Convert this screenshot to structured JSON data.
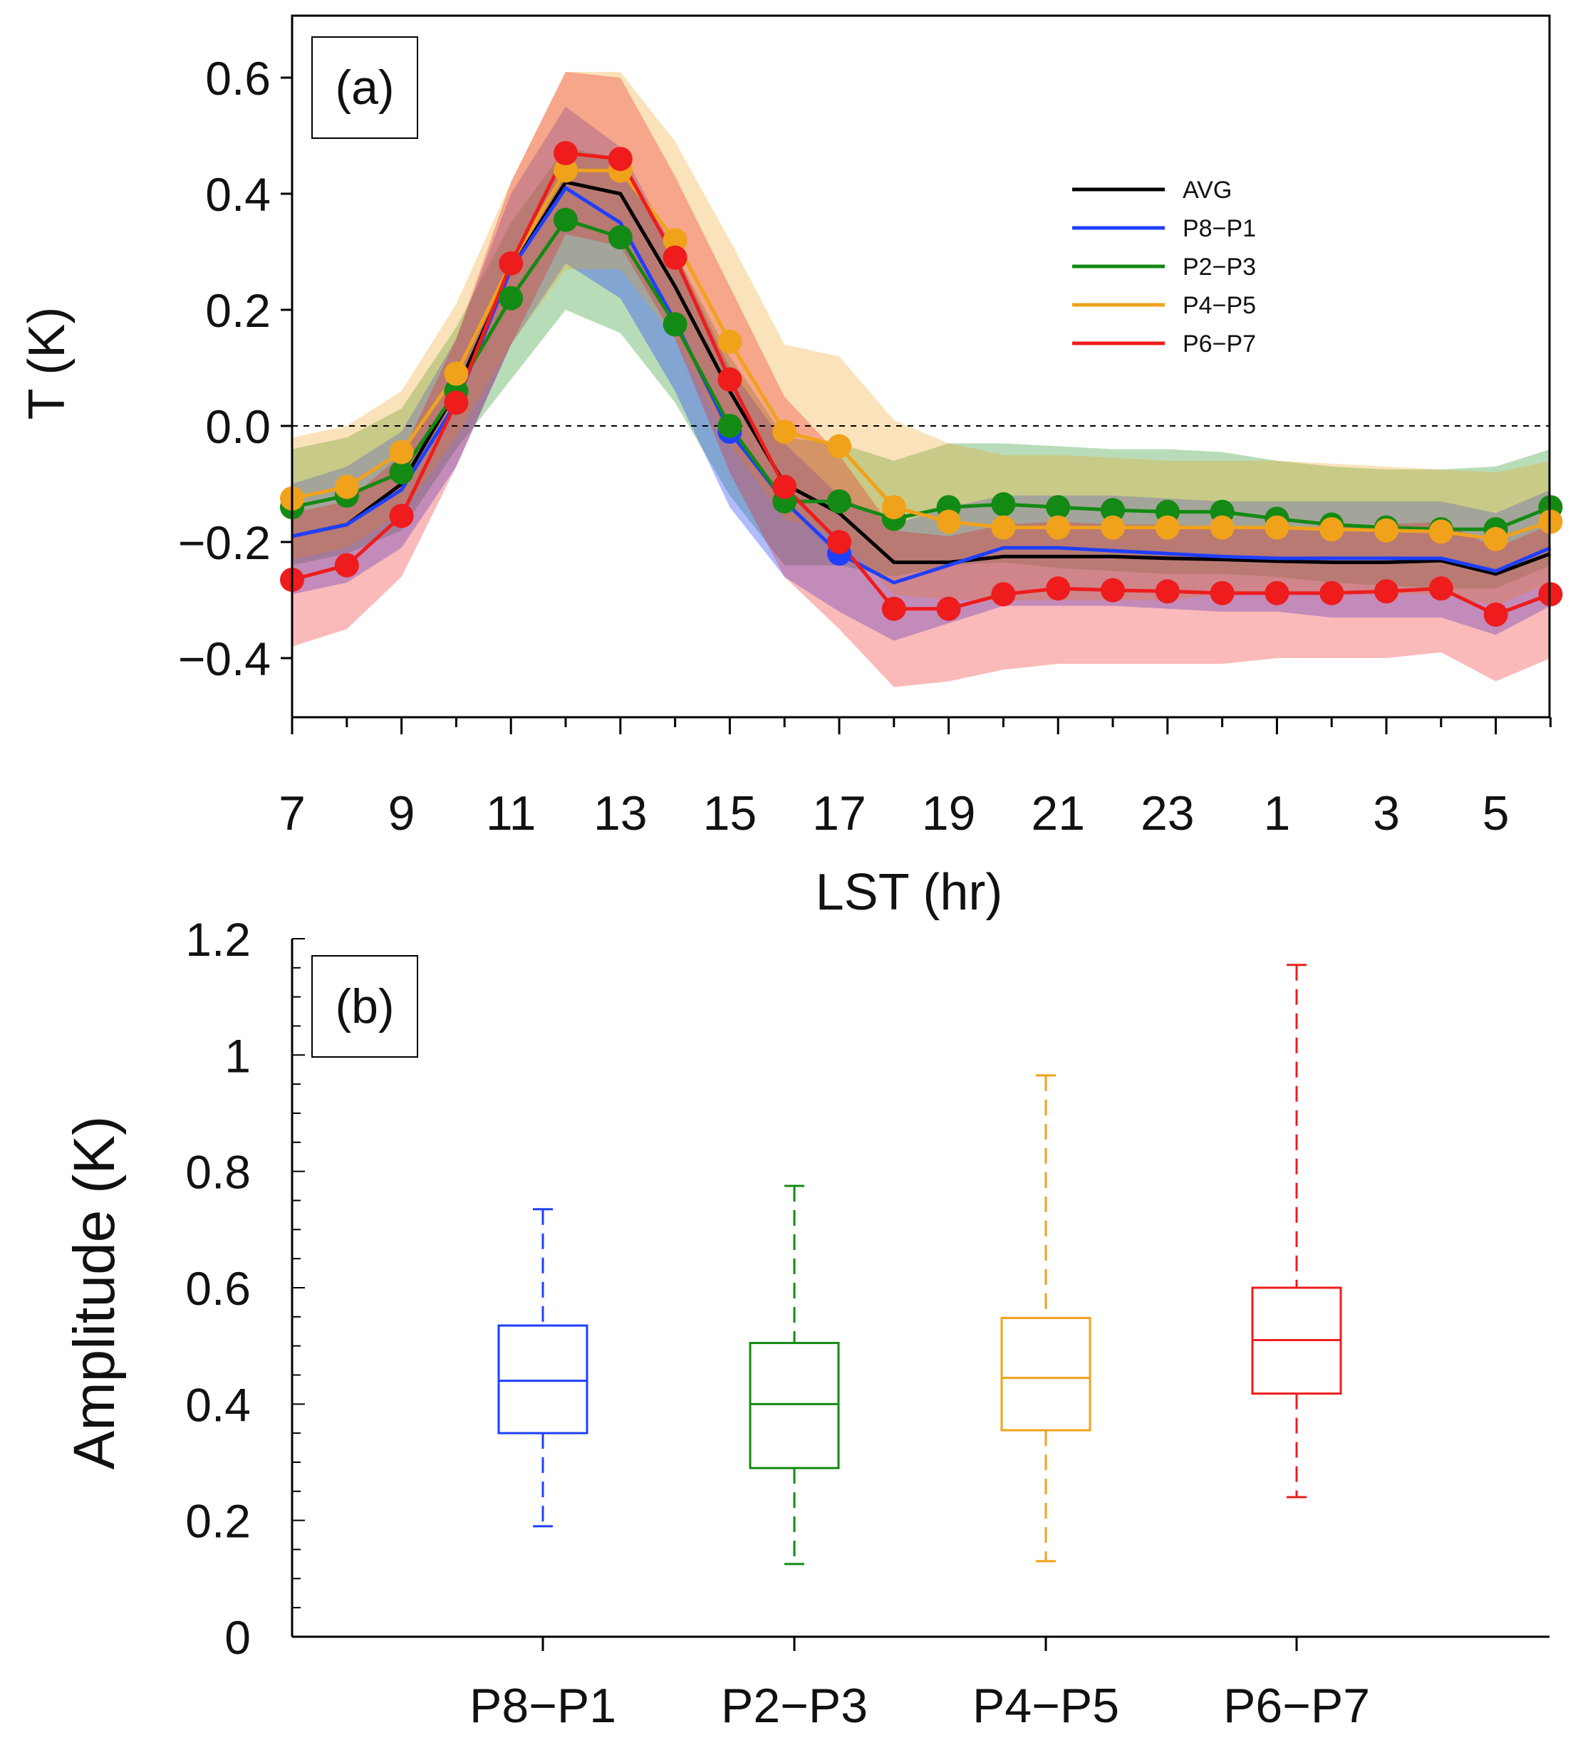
{
  "chart_data": [
    {
      "type": "line",
      "panel_label": "(a)",
      "xlabel": "LST (hr)",
      "ylabel": "T (K)",
      "x_index": [
        0,
        1,
        2,
        3,
        4,
        5,
        6,
        7,
        8,
        9,
        10,
        11,
        12,
        13,
        14,
        15,
        16,
        17,
        18,
        19,
        20,
        21,
        22,
        23
      ],
      "hours": [
        7,
        8,
        9,
        10,
        11,
        12,
        13,
        14,
        15,
        16,
        17,
        18,
        19,
        20,
        21,
        22,
        23,
        0,
        1,
        2,
        3,
        4,
        5,
        6
      ],
      "x_tick_labels": [
        "7",
        "9",
        "11",
        "13",
        "15",
        "17",
        "19",
        "21",
        "23",
        "1",
        "3",
        "5"
      ],
      "y_tick_labels": [
        "0.6",
        "0.4",
        "0.2",
        "0.0",
        "−0.2",
        "−0.4"
      ],
      "y_ticks": [
        0.6,
        0.4,
        0.2,
        0.0,
        -0.2,
        -0.4
      ],
      "ylim": [
        -0.5,
        0.7
      ],
      "reference_line": 0.0,
      "legend": {
        "position": "top-right"
      },
      "series": [
        {
          "name": "AVG",
          "color": "#000000",
          "markers": false,
          "values": [
            -0.19,
            -0.17,
            -0.1,
            0.06,
            0.27,
            0.42,
            0.4,
            0.24,
            0.06,
            -0.1,
            -0.15,
            -0.235,
            -0.235,
            -0.225,
            -0.225,
            -0.225,
            -0.228,
            -0.23,
            -0.233,
            -0.235,
            -0.235,
            -0.232,
            -0.255,
            -0.22
          ]
        },
        {
          "name": "P8−P1",
          "color": "#1f3fff",
          "markers": false,
          "marker_indices": [
            8,
            10
          ],
          "values": [
            -0.19,
            -0.17,
            -0.11,
            0.04,
            0.27,
            0.41,
            0.35,
            0.18,
            -0.01,
            -0.13,
            -0.22,
            -0.27,
            -0.24,
            -0.21,
            -0.21,
            -0.215,
            -0.22,
            -0.225,
            -0.228,
            -0.228,
            -0.228,
            -0.228,
            -0.25,
            -0.21
          ],
          "band_upper": [
            -0.1,
            -0.07,
            -0.01,
            0.15,
            0.4,
            0.55,
            0.48,
            0.3,
            0.1,
            -0.03,
            -0.12,
            -0.17,
            -0.14,
            -0.12,
            -0.12,
            -0.12,
            -0.125,
            -0.13,
            -0.13,
            -0.13,
            -0.13,
            -0.13,
            -0.15,
            -0.11
          ],
          "band_lower": [
            -0.29,
            -0.27,
            -0.21,
            -0.07,
            0.14,
            0.28,
            0.22,
            0.06,
            -0.14,
            -0.26,
            -0.32,
            -0.37,
            -0.34,
            -0.31,
            -0.31,
            -0.31,
            -0.315,
            -0.32,
            -0.32,
            -0.33,
            -0.33,
            -0.33,
            -0.36,
            -0.31
          ]
        },
        {
          "name": "P2−P3",
          "color": "#138a13",
          "markers": true,
          "values": [
            -0.14,
            -0.12,
            -0.08,
            0.06,
            0.22,
            0.355,
            0.325,
            0.175,
            0.0,
            -0.13,
            -0.13,
            -0.16,
            -0.14,
            -0.135,
            -0.14,
            -0.145,
            -0.148,
            -0.148,
            -0.16,
            -0.17,
            -0.175,
            -0.178,
            -0.178,
            -0.14
          ],
          "band_upper": [
            -0.04,
            -0.02,
            0.03,
            0.17,
            0.35,
            0.48,
            0.46,
            0.3,
            0.12,
            -0.02,
            -0.03,
            -0.06,
            -0.03,
            -0.03,
            -0.035,
            -0.04,
            -0.04,
            -0.045,
            -0.06,
            -0.07,
            -0.075,
            -0.075,
            -0.07,
            -0.04
          ],
          "band_lower": [
            -0.24,
            -0.22,
            -0.18,
            -0.04,
            0.08,
            0.2,
            0.16,
            0.04,
            -0.12,
            -0.24,
            -0.24,
            -0.26,
            -0.24,
            -0.235,
            -0.245,
            -0.25,
            -0.255,
            -0.255,
            -0.26,
            -0.27,
            -0.275,
            -0.28,
            -0.28,
            -0.24
          ]
        },
        {
          "name": "P4−P5",
          "color": "#f0a21b",
          "markers": true,
          "values": [
            -0.125,
            -0.105,
            -0.045,
            0.09,
            0.28,
            0.44,
            0.44,
            0.32,
            0.145,
            -0.01,
            -0.035,
            -0.14,
            -0.165,
            -0.175,
            -0.175,
            -0.175,
            -0.175,
            -0.175,
            -0.175,
            -0.178,
            -0.18,
            -0.182,
            -0.195,
            -0.165
          ],
          "band_upper": [
            -0.02,
            0.0,
            0.06,
            0.21,
            0.42,
            0.61,
            0.61,
            0.49,
            0.32,
            0.14,
            0.12,
            0.01,
            -0.03,
            -0.05,
            -0.05,
            -0.055,
            -0.06,
            -0.06,
            -0.06,
            -0.065,
            -0.07,
            -0.075,
            -0.08,
            -0.06
          ],
          "band_lower": [
            -0.23,
            -0.21,
            -0.15,
            -0.02,
            0.14,
            0.27,
            0.27,
            0.15,
            -0.03,
            -0.16,
            -0.19,
            -0.29,
            -0.3,
            -0.3,
            -0.3,
            -0.3,
            -0.3,
            -0.29,
            -0.29,
            -0.29,
            -0.29,
            -0.29,
            -0.31,
            -0.27
          ]
        },
        {
          "name": "P6−P7",
          "color": "#ee1c1c",
          "markers": true,
          "values": [
            -0.265,
            -0.24,
            -0.155,
            0.04,
            0.28,
            0.47,
            0.46,
            0.29,
            0.08,
            -0.105,
            -0.2,
            -0.315,
            -0.315,
            -0.29,
            -0.28,
            -0.283,
            -0.285,
            -0.288,
            -0.288,
            -0.288,
            -0.285,
            -0.28,
            -0.325,
            -0.29
          ],
          "band_upper": [
            -0.15,
            -0.13,
            -0.05,
            0.15,
            0.42,
            0.61,
            0.6,
            0.43,
            0.24,
            0.05,
            -0.05,
            -0.18,
            -0.19,
            -0.17,
            -0.165,
            -0.17,
            -0.17,
            -0.175,
            -0.175,
            -0.175,
            -0.17,
            -0.165,
            -0.21,
            -0.17
          ],
          "band_lower": [
            -0.38,
            -0.35,
            -0.26,
            -0.07,
            0.14,
            0.33,
            0.31,
            0.15,
            -0.08,
            -0.26,
            -0.35,
            -0.45,
            -0.44,
            -0.42,
            -0.41,
            -0.41,
            -0.41,
            -0.41,
            -0.4,
            -0.4,
            -0.4,
            -0.39,
            -0.44,
            -0.4
          ]
        }
      ]
    },
    {
      "type": "box",
      "panel_label": "(b)",
      "xlabel": "",
      "ylabel": "Amplitude (K)",
      "categories": [
        "P8−P1",
        "P2−P3",
        "P4−P5",
        "P6−P7"
      ],
      "colors": [
        "#1f3fff",
        "#138a13",
        "#f0a21b",
        "#ee1c1c"
      ],
      "y_tick_labels": [
        "1.2",
        "1",
        "0.8",
        "0.6",
        "0.4",
        "0.2",
        "0"
      ],
      "y_ticks": [
        1.2,
        1.0,
        0.8,
        0.6,
        0.4,
        0.2,
        0.0
      ],
      "ylim": [
        0,
        1.2
      ],
      "boxes": [
        {
          "whisker_low": 0.19,
          "q1": 0.35,
          "median": 0.44,
          "q3": 0.535,
          "whisker_high": 0.735
        },
        {
          "whisker_low": 0.125,
          "q1": 0.29,
          "median": 0.4,
          "q3": 0.505,
          "whisker_high": 0.775
        },
        {
          "whisker_low": 0.13,
          "q1": 0.355,
          "median": 0.445,
          "q3": 0.548,
          "whisker_high": 0.965
        },
        {
          "whisker_low": 0.24,
          "q1": 0.418,
          "median": 0.51,
          "q3": 0.6,
          "whisker_high": 1.155
        }
      ]
    }
  ]
}
